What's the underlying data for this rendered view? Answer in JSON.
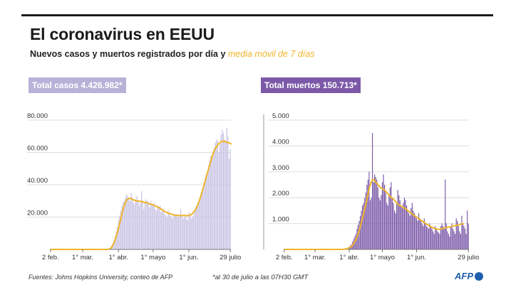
{
  "header": {
    "title": "El coronavirus en EEUU",
    "subtitle_main": "Nuevos casos y muertos registrados por día y",
    "subtitle_accent": "media móvil de 7 días"
  },
  "badges": {
    "cases": "Total casos 4.426.982*",
    "deaths": "Total muertos 150.713*"
  },
  "footer": {
    "source": "Fuentes: Johns Hopkins University, conteo de AFP",
    "note": "*al 30 de julio a las 07H30 GMT",
    "logo": "AFP"
  },
  "colors": {
    "cases_bar": "#c9c3e4",
    "deaths_bar": "#7b59a8",
    "moving_avg": "#f0b429",
    "grid": "#dddddd",
    "logo": "#1f5fae"
  },
  "chart_data": [
    {
      "type": "bar",
      "title": "",
      "series": [
        {
          "name": "",
          "values": [
            0,
            0,
            0,
            0,
            0,
            0,
            0,
            0,
            0,
            0,
            0,
            0,
            0,
            0,
            0,
            0,
            0,
            0,
            0,
            0,
            0,
            0,
            0,
            0,
            0,
            0,
            0,
            0,
            0,
            0,
            0,
            0,
            0,
            0,
            0,
            0,
            0,
            0,
            0,
            0,
            0,
            0,
            0,
            0,
            0,
            0,
            0,
            0,
            0,
            0,
            200,
            500,
            1000,
            2000,
            3500,
            5500,
            8000,
            11000,
            14000,
            18000,
            21000,
            24000,
            27000,
            29000,
            30000,
            32000,
            34000,
            33000,
            31000,
            30000,
            35000,
            32000,
            29000,
            28000,
            31000,
            33000,
            30000,
            27000,
            29000,
            36000,
            30000,
            25000,
            29000,
            31000,
            30000,
            28000,
            26000,
            30000,
            28000,
            27000,
            29000,
            25000,
            24000,
            27000,
            26000,
            27000,
            23000,
            24000,
            25000,
            22000,
            21000,
            20000,
            24000,
            23000,
            21000,
            20000,
            19000,
            22000,
            21000,
            22000,
            20000,
            20000,
            21000,
            25000,
            21000,
            19000,
            20000,
            21000,
            19000,
            18000,
            23000,
            22000,
            19000,
            20000,
            21000,
            24000,
            26000,
            27000,
            29000,
            31000,
            32000,
            34000,
            37000,
            40000,
            44000,
            46000,
            48000,
            52000,
            55000,
            58000,
            57000,
            60000,
            63000,
            66000,
            68000,
            67000,
            60000,
            65000,
            71000,
            74000,
            72000,
            68000,
            66000,
            75000,
            70000,
            56000,
            62000
          ]
        },
        {
          "name": "media móvil de 7 días",
          "values": [
            0,
            0,
            0,
            0,
            0,
            0,
            0,
            0,
            0,
            0,
            0,
            0,
            0,
            0,
            0,
            0,
            0,
            0,
            0,
            0,
            0,
            0,
            0,
            0,
            0,
            0,
            0,
            0,
            0,
            0,
            0,
            0,
            0,
            0,
            0,
            0,
            0,
            0,
            0,
            0,
            0,
            0,
            0,
            0,
            0,
            0,
            0,
            0,
            0,
            0,
            100,
            300,
            700,
            1400,
            2500,
            4000,
            5800,
            8000,
            10500,
            13000,
            16000,
            19000,
            22000,
            25000,
            27000,
            29000,
            30500,
            31000,
            31500,
            31500,
            31500,
            31000,
            30500,
            30500,
            30000,
            30000,
            30000,
            29800,
            29800,
            29800,
            29500,
            29200,
            29000,
            29000,
            28800,
            28500,
            28200,
            28000,
            27800,
            27500,
            27200,
            26800,
            26500,
            26200,
            25800,
            25500,
            25000,
            24500,
            24000,
            23500,
            23000,
            22800,
            22500,
            22200,
            22000,
            21800,
            21500,
            21300,
            21200,
            21100,
            21000,
            21000,
            21000,
            21000,
            21000,
            21000,
            21000,
            21000,
            20900,
            20900,
            21000,
            21200,
            21500,
            22000,
            22800,
            23800,
            25000,
            26500,
            28000,
            30000,
            32000,
            34500,
            37000,
            39500,
            42000,
            44500,
            47000,
            49500,
            52000,
            54500,
            57000,
            59000,
            61000,
            62500,
            63500,
            64500,
            65500,
            66000,
            66500,
            67000,
            67000,
            66800,
            66500,
            66200,
            66000,
            65800,
            65500,
            65000
          ]
        }
      ],
      "x_tick_labels": [
        "2 feb.",
        "1° mar.",
        "1° abr.",
        "1° mayo",
        "1° jun.",
        "29 julio"
      ],
      "y_tick_labels": [
        "20.000",
        "40.000",
        "60.000",
        "80.000"
      ],
      "ylim": [
        0,
        80000
      ],
      "xlabel": "",
      "ylabel": "",
      "grid": true
    },
    {
      "type": "bar",
      "title": "",
      "series": [
        {
          "name": "",
          "values": [
            0,
            0,
            0,
            0,
            0,
            0,
            0,
            0,
            0,
            0,
            0,
            0,
            0,
            0,
            0,
            0,
            0,
            0,
            0,
            0,
            0,
            0,
            0,
            0,
            0,
            0,
            0,
            0,
            0,
            0,
            0,
            0,
            0,
            0,
            0,
            0,
            0,
            0,
            0,
            0,
            0,
            0,
            0,
            0,
            0,
            0,
            0,
            0,
            0,
            0,
            0,
            0,
            0,
            5,
            10,
            20,
            30,
            50,
            80,
            100,
            150,
            200,
            300,
            400,
            500,
            600,
            800,
            950,
            1100,
            1300,
            1500,
            1700,
            1800,
            2000,
            2200,
            2500,
            2700,
            3000,
            1900,
            2000,
            4500,
            2600,
            2900,
            2800,
            2700,
            2400,
            2000,
            1900,
            2100,
            2600,
            2900,
            2500,
            2200,
            1800,
            1700,
            2100,
            2400,
            2600,
            2000,
            1800,
            1500,
            1400,
            1800,
            2300,
            2100,
            1900,
            1700,
            1600,
            1800,
            2000,
            1900,
            1700,
            1500,
            1400,
            1300,
            1600,
            1800,
            1500,
            1400,
            1300,
            1200,
            1100,
            1400,
            1200,
            1100,
            1000,
            900,
            1200,
            1000,
            900,
            850,
            800,
            1000,
            900,
            800,
            700,
            600,
            900,
            800,
            700,
            650,
            600,
            900,
            1000,
            900,
            800,
            2700,
            1000,
            700,
            600,
            500,
            900,
            1000,
            800,
            700,
            600,
            1200,
            1100,
            900,
            700,
            600,
            1300,
            1000,
            900,
            800,
            600,
            1500,
            1000
          ]
        },
        {
          "name": "media móvil de 7 días",
          "values": [
            0,
            0,
            0,
            0,
            0,
            0,
            0,
            0,
            0,
            0,
            0,
            0,
            0,
            0,
            0,
            0,
            0,
            0,
            0,
            0,
            0,
            0,
            0,
            0,
            0,
            0,
            0,
            0,
            0,
            0,
            0,
            0,
            0,
            0,
            0,
            0,
            0,
            0,
            0,
            0,
            0,
            0,
            0,
            0,
            0,
            0,
            0,
            0,
            0,
            0,
            0,
            0,
            0,
            2,
            5,
            10,
            18,
            30,
            45,
            65,
            90,
            120,
            160,
            220,
            290,
            380,
            480,
            600,
            730,
            880,
            1040,
            1210,
            1380,
            1560,
            1740,
            1940,
            2140,
            2350,
            2500,
            2600,
            2700,
            2700,
            2650,
            2600,
            2550,
            2500,
            2450,
            2400,
            2380,
            2350,
            2320,
            2300,
            2250,
            2200,
            2150,
            2100,
            2050,
            2000,
            1980,
            1950,
            1900,
            1850,
            1800,
            1750,
            1720,
            1700,
            1680,
            1650,
            1620,
            1600,
            1570,
            1540,
            1500,
            1470,
            1440,
            1400,
            1370,
            1340,
            1310,
            1280,
            1250,
            1220,
            1190,
            1160,
            1130,
            1100,
            1070,
            1040,
            1010,
            980,
            950,
            920,
            900,
            880,
            860,
            840,
            820,
            800,
            790,
            780,
            780,
            780,
            790,
            800,
            810,
            820,
            830,
            840,
            850,
            860,
            870,
            880,
            890,
            900,
            910,
            920,
            930,
            940,
            950,
            960,
            970,
            980,
            990,
            1000
          ]
        }
      ],
      "x_tick_labels": [
        "2 feb.",
        "1° mar.",
        "1° abr.",
        "1° mayo",
        "1° jun.",
        "29 julio"
      ],
      "y_tick_labels": [
        "1.000",
        "2.000",
        "3.000",
        "4.000",
        "5.000"
      ],
      "ylim": [
        0,
        5000
      ],
      "xlabel": "",
      "ylabel": "",
      "grid": true
    }
  ]
}
